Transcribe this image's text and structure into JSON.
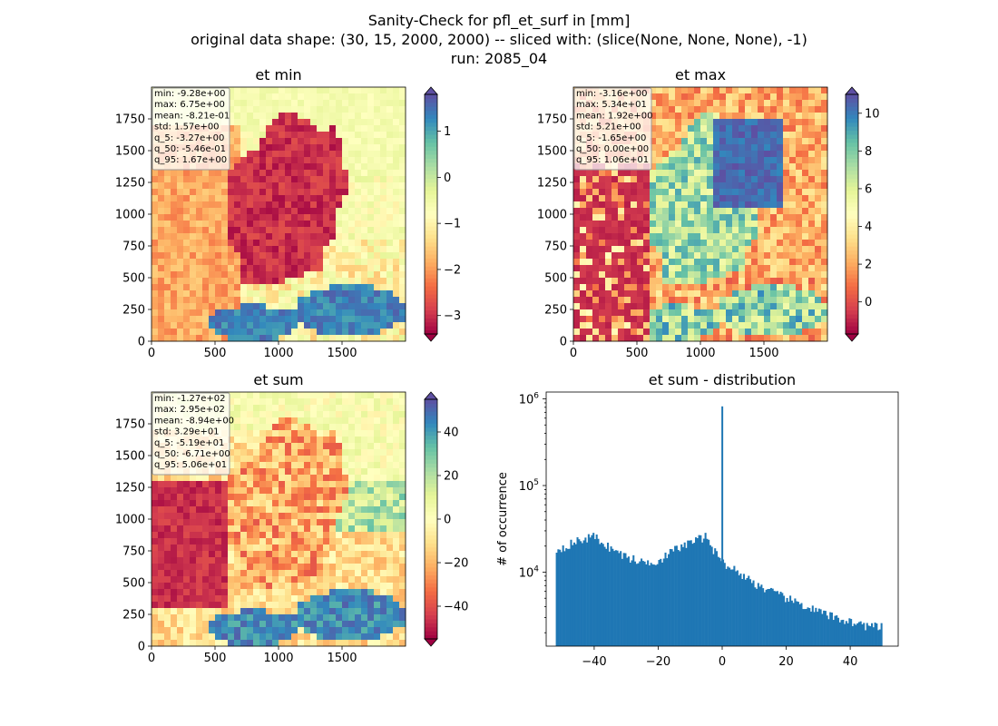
{
  "figure": {
    "title_lines": [
      "Sanity-Check for pfl_et_surf in [mm]",
      "original data shape: (30, 15, 2000, 2000) -- sliced with: (slice(None, None, None), -1)",
      "run: 2085_04"
    ]
  },
  "chart_data": [
    {
      "type": "heatmap",
      "title": "et min",
      "xlim": [
        0,
        2000
      ],
      "ylim": [
        0,
        2000
      ],
      "xticks": [
        "0",
        "500",
        "1000",
        "1500"
      ],
      "yticks": [
        "0",
        "250",
        "500",
        "750",
        "1000",
        "1250",
        "1500",
        "1750"
      ],
      "colormap": "Spectral",
      "colorbar": {
        "range": [
          -3.4,
          1.8
        ],
        "extend": "both",
        "tick_values": [
          -3,
          -2,
          -1,
          0,
          1
        ],
        "tick_labels": [
          "−3",
          "−2",
          "−1",
          "0",
          "1"
        ]
      },
      "stats": [
        "min: -9.28e+00",
        "max: 6.75e+00",
        "mean: -8.21e-01",
        "std: 1.57e+00",
        "q_5: -3.27e+00",
        "q_50: -5.46e-01",
        "q_95: 1.67e+00"
      ]
    },
    {
      "type": "heatmap",
      "title": "et max",
      "xlim": [
        0,
        2000
      ],
      "ylim": [
        0,
        2000
      ],
      "xticks": [
        "0",
        "500",
        "1000",
        "1500"
      ],
      "yticks": [
        "0",
        "250",
        "500",
        "750",
        "1000",
        "1250",
        "1500",
        "1750"
      ],
      "colormap": "Spectral",
      "colorbar": {
        "range": [
          -1.7,
          11
        ],
        "extend": "both",
        "tick_values": [
          0,
          2,
          4,
          6,
          8,
          10
        ],
        "tick_labels": [
          "0",
          "2",
          "4",
          "6",
          "8",
          "10"
        ]
      },
      "stats": [
        "min: -3.16e+00",
        "max: 5.34e+01",
        "mean: 1.92e+00",
        "std: 5.21e+00",
        "q_5: -1.65e+00",
        "q_50: 0.00e+00",
        "q_95: 1.06e+01"
      ]
    },
    {
      "type": "heatmap",
      "title": "et sum",
      "xlim": [
        0,
        2000
      ],
      "ylim": [
        0,
        2000
      ],
      "xticks": [
        "0",
        "500",
        "1000",
        "1500"
      ],
      "yticks": [
        "0",
        "250",
        "500",
        "750",
        "1000",
        "1250",
        "1500",
        "1750"
      ],
      "colormap": "Spectral",
      "colorbar": {
        "range": [
          -55,
          55
        ],
        "extend": "both",
        "tick_values": [
          -40,
          -20,
          0,
          20,
          40
        ],
        "tick_labels": [
          "−40",
          "−20",
          "0",
          "20",
          "40"
        ]
      },
      "stats": [
        "min: -1.27e+02",
        "max: 2.95e+02",
        "mean: -8.94e+00",
        "std: 3.29e+01",
        "q_5: -5.19e+01",
        "q_50: -6.71e+00",
        "q_95: 5.06e+01"
      ]
    },
    {
      "type": "bar",
      "title": "et sum - distribution",
      "ylabel": "# of occurrence",
      "xlabel": "",
      "yscale": "log",
      "xlim": [
        -55,
        55
      ],
      "ylim": [
        1400,
        1200000
      ],
      "xticks": [
        -40,
        -20,
        0,
        20,
        40
      ],
      "xtick_labels": [
        "−40",
        "−20",
        "0",
        "20",
        "40"
      ],
      "ytick_values": [
        10000,
        100000,
        1000000
      ],
      "ytick_exponents": [
        "4",
        "5",
        "6"
      ],
      "ytick_base": "10",
      "bar_color": "#1f77b4",
      "bin_range": [
        -52,
        50
      ],
      "bin_width": 0.5,
      "envelope": [
        [
          -52,
          18000
        ],
        [
          -45,
          23000
        ],
        [
          -40,
          26000
        ],
        [
          -35,
          19000
        ],
        [
          -30,
          15000
        ],
        [
          -25,
          13000
        ],
        [
          -20,
          13500
        ],
        [
          -15,
          18000
        ],
        [
          -10,
          22000
        ],
        [
          -5,
          26000
        ],
        [
          -1,
          14000
        ],
        [
          5,
          10000
        ],
        [
          10,
          7500
        ],
        [
          15,
          6000
        ],
        [
          20,
          5000
        ],
        [
          25,
          4200
        ],
        [
          30,
          3500
        ],
        [
          35,
          3000
        ],
        [
          40,
          2700
        ],
        [
          45,
          2400
        ],
        [
          50,
          2300
        ]
      ],
      "spike": {
        "x": 0,
        "count": 820000
      }
    }
  ]
}
